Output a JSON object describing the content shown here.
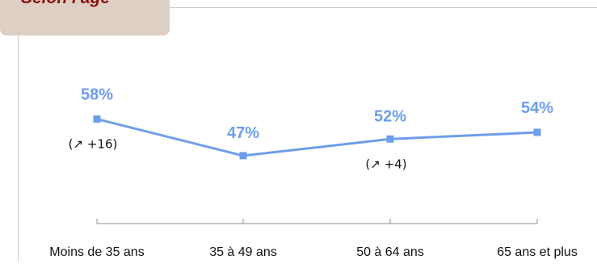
{
  "header": {
    "title": "Selon l'âge"
  },
  "colors": {
    "series": "#6d9eeb",
    "label": "#6d9eeb",
    "tab": "#ddcfc4",
    "title": "#8b0f0f"
  },
  "chart_data": {
    "type": "line",
    "categories": [
      "Moins de 35 ans",
      "35 à 49 ans",
      "50 à 64 ans",
      "65 ans et plus"
    ],
    "series": [
      {
        "values": [
          58,
          47,
          52,
          54
        ]
      }
    ],
    "data_labels": [
      "58%",
      "47%",
      "52%",
      "54%"
    ],
    "annotations": [
      {
        "category_index": 0,
        "text": "(↗ +16)"
      },
      {
        "category_index": 2,
        "text": "(↗ +4)"
      }
    ],
    "ylim": [
      30,
      70
    ],
    "grid": false
  }
}
